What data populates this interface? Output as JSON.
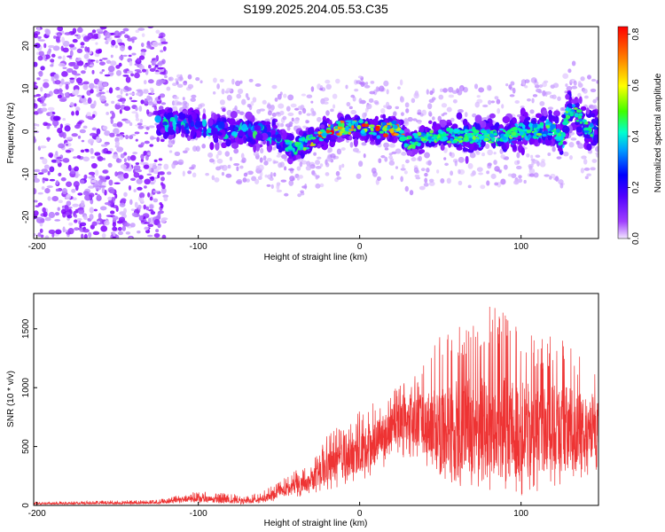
{
  "title": "S199.2025.204.05.53.C35",
  "chart_data": [
    {
      "type": "heatmap",
      "title": "S199.2025.204.05.53.C35",
      "xlabel": "Height of straight line (km)",
      "ylabel": "Frequency (Hz)",
      "xlim": [
        -202,
        148
      ],
      "ylim": [
        -25,
        24.5
      ],
      "x_ticks": [
        -200,
        -100,
        0,
        100
      ],
      "y_ticks": [
        -20,
        -10,
        0,
        10,
        20
      ],
      "colorbar": {
        "label": "Normalized spectral amplitude",
        "range": [
          0.0,
          0.83
        ],
        "ticks": [
          "0.0",
          "0.2",
          "0.4",
          "0.6",
          "0.8"
        ],
        "colormap": [
          "#f2e6ff",
          "#8000ff",
          "#0000ff",
          "#00ffff",
          "#00ff00",
          "#ffff00",
          "#ff8000",
          "#ff0000"
        ]
      },
      "ridge": {
        "description": "frequency band center vs height",
        "x": [
          -200,
          -160,
          -130,
          -120,
          -100,
          -80,
          -60,
          -50,
          -40,
          -35,
          -30,
          -20,
          -10,
          0,
          10,
          20,
          25,
          30,
          40,
          50,
          60,
          70,
          80,
          90,
          100,
          110,
          120,
          125,
          130,
          135,
          140,
          148
        ],
        "y": [
          3,
          3,
          2,
          2,
          1,
          0,
          0,
          -2,
          -4,
          -3,
          -2,
          0,
          1,
          1,
          0,
          1,
          0,
          -3,
          -1,
          -1,
          -1,
          -1,
          -1,
          -1,
          0,
          0,
          1,
          -2,
          6,
          4,
          1,
          0
        ]
      }
    },
    {
      "type": "line",
      "xlabel": "Height of straight line (km)",
      "ylabel": "SNR (10 * v/v)",
      "xlim": [
        -202,
        148
      ],
      "ylim": [
        0,
        1800
      ],
      "x_ticks": [
        -200,
        -100,
        0,
        100
      ],
      "y_ticks": [
        0,
        500,
        1000,
        1500
      ],
      "color": "#ee3333",
      "envelope": {
        "x": [
          -200,
          -180,
          -160,
          -140,
          -130,
          -120,
          -110,
          -100,
          -90,
          -80,
          -70,
          -60,
          -50,
          -40,
          -30,
          -20,
          -10,
          0,
          10,
          15,
          20,
          30,
          40,
          50,
          60,
          70,
          80,
          90,
          100,
          110,
          120,
          130,
          140,
          148
        ],
        "low": [
          8,
          8,
          10,
          10,
          10,
          12,
          20,
          20,
          15,
          15,
          10,
          20,
          40,
          70,
          80,
          120,
          150,
          200,
          250,
          300,
          420,
          400,
          350,
          250,
          150,
          100,
          60,
          60,
          80,
          100,
          150,
          200,
          250,
          300
        ],
        "high": [
          30,
          35,
          40,
          45,
          45,
          60,
          100,
          120,
          110,
          100,
          80,
          120,
          200,
          300,
          350,
          600,
          700,
          800,
          900,
          850,
          1000,
          1050,
          1300,
          1500,
          1550,
          1600,
          1700,
          1650,
          1550,
          1400,
          1500,
          1450,
          1200,
          1100
        ],
        "mean": [
          15,
          18,
          20,
          22,
          22,
          30,
          55,
          55,
          50,
          45,
          35,
          60,
          110,
          170,
          200,
          330,
          380,
          450,
          550,
          600,
          700,
          720,
          700,
          680,
          680,
          680,
          650,
          650,
          650,
          650,
          650,
          680,
          650,
          650
        ]
      }
    }
  ]
}
